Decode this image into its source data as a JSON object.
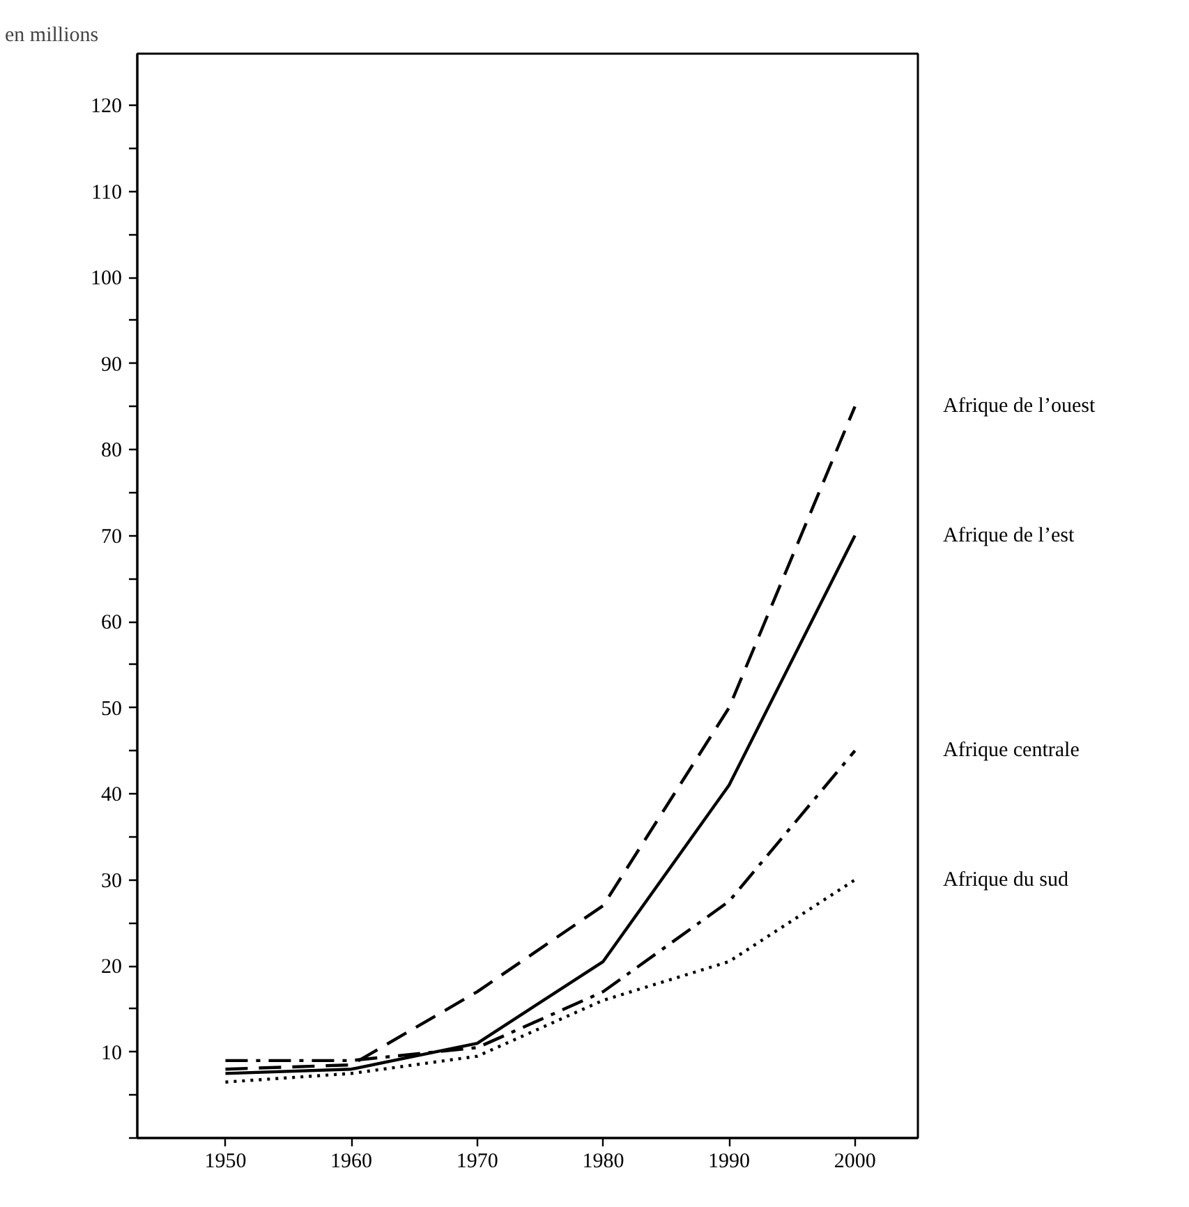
{
  "chart_data": {
    "type": "line",
    "ylabel": "en millions",
    "x": [
      1950,
      1960,
      1970,
      1980,
      1990,
      2000
    ],
    "xlim": [
      1943,
      2005
    ],
    "xticks": [
      1950,
      1960,
      1970,
      1980,
      1990,
      2000
    ],
    "ylim": [
      0,
      126
    ],
    "yticks": [
      {
        "value": 0,
        "label": null
      },
      {
        "value": 5,
        "label": null
      },
      10,
      {
        "value": 15,
        "label": null
      },
      20,
      {
        "value": 25,
        "label": null
      },
      30,
      {
        "value": 35,
        "label": null
      },
      40,
      {
        "value": 45,
        "label": null
      },
      50,
      {
        "value": 55,
        "label": null
      },
      60,
      {
        "value": 65,
        "label": null
      },
      70,
      {
        "value": 75,
        "label": null
      },
      80,
      {
        "value": 85,
        "label": null
      },
      90,
      {
        "value": 95,
        "label": null
      },
      100,
      {
        "value": 105,
        "label": null
      },
      110,
      {
        "value": 115,
        "label": null
      },
      120
    ],
    "grid": false,
    "marker": "none",
    "series": [
      {
        "name": "Afrique de l’ouest",
        "color": "#000000",
        "line_style": "dashed",
        "values": [
          8,
          8.5,
          17,
          27,
          50,
          85
        ]
      },
      {
        "name": "Afrique de l’est",
        "color": "#000000",
        "line_style": "solid",
        "values": [
          7.5,
          8,
          11,
          20.5,
          41,
          70
        ]
      },
      {
        "name": "Afrique centrale",
        "color": "#000000",
        "line_style": "dashdot",
        "values": [
          9,
          9,
          10.5,
          17,
          27.5,
          45
        ]
      },
      {
        "name": "Afrique du sud",
        "color": "#000000",
        "line_style": "dotted",
        "values": [
          6.5,
          7.5,
          9.5,
          16,
          20.5,
          30
        ]
      }
    ]
  }
}
